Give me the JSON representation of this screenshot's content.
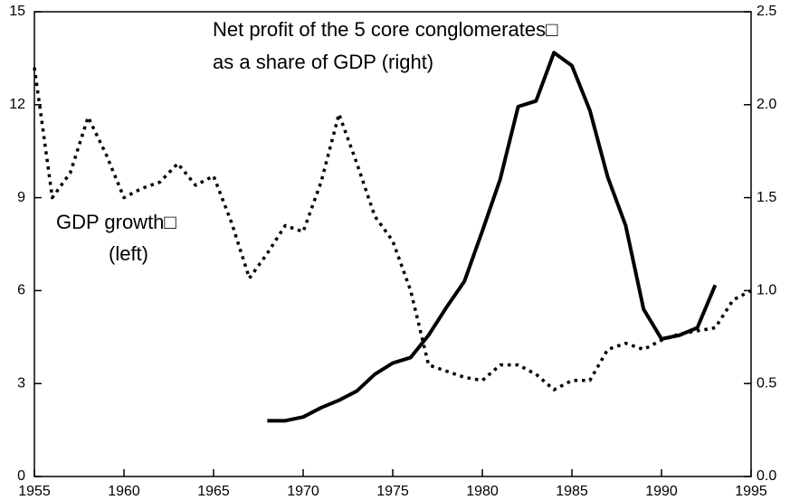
{
  "chart_data": {
    "type": "line",
    "annotations": [
      {
        "lines": [
          "Net profit of the 5 core conglomerates□",
          "as a share of GDP (right)"
        ]
      },
      {
        "lines": [
          "GDP growth□",
          "(left)"
        ]
      }
    ],
    "x": [
      1955,
      1956,
      1957,
      1958,
      1959,
      1960,
      1961,
      1962,
      1963,
      1964,
      1965,
      1966,
      1967,
      1968,
      1969,
      1970,
      1971,
      1972,
      1973,
      1974,
      1975,
      1976,
      1977,
      1978,
      1979,
      1980,
      1981,
      1982,
      1983,
      1984,
      1985,
      1986,
      1987,
      1988,
      1989,
      1990,
      1991,
      1992,
      1993,
      1994,
      1995
    ],
    "series": [
      {
        "name": "GDP growth",
        "color": "#000000",
        "dash": true,
        "axis": "y",
        "values": [
          13.2,
          9.0,
          9.8,
          11.6,
          10.4,
          9.0,
          9.3,
          9.5,
          10.1,
          9.4,
          9.7,
          8.2,
          6.4,
          7.2,
          8.1,
          7.9,
          9.5,
          11.7,
          10.1,
          8.4,
          7.6,
          6.0,
          3.6,
          3.4,
          3.2,
          3.1,
          3.6,
          3.6,
          3.3,
          2.8,
          3.1,
          3.1,
          4.1,
          4.3,
          4.1,
          4.4,
          4.6,
          4.7,
          4.8,
          5.7,
          6.0
        ]
      },
      {
        "name": "Net profit",
        "color": "#000000",
        "dash": false,
        "axis": "y2",
        "values": [
          null,
          null,
          null,
          null,
          null,
          null,
          null,
          null,
          null,
          null,
          null,
          null,
          null,
          0.3,
          0.3,
          0.32,
          0.37,
          0.41,
          0.46,
          0.55,
          0.61,
          0.64,
          0.76,
          0.91,
          1.05,
          1.32,
          1.6,
          1.99,
          2.02,
          2.28,
          2.21,
          1.97,
          1.61,
          1.35,
          0.9,
          0.74,
          0.76,
          0.8,
          1.03,
          null,
          null
        ]
      }
    ],
    "xlim": [
      1955,
      1995
    ],
    "xticks": [
      1955,
      1960,
      1965,
      1970,
      1975,
      1980,
      1985,
      1990,
      1995
    ],
    "ylim": [
      0,
      15
    ],
    "yticks": [
      0,
      3,
      6,
      9,
      12,
      15
    ],
    "y2lim": [
      0,
      2.5
    ],
    "y2ticks": [
      {
        "value": 0,
        "label": "0.0"
      },
      0.5,
      {
        "value": 1,
        "label": "1.0"
      },
      1.5,
      {
        "value": 2,
        "label": "2.0"
      },
      2.5
    ],
    "grid": false
  }
}
